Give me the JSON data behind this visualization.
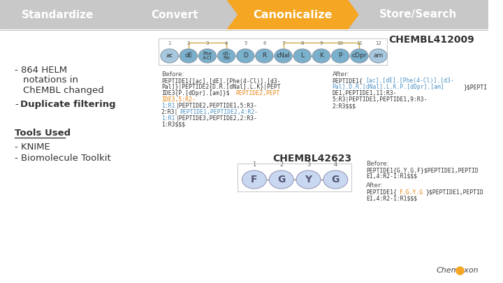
{
  "bg_color": "#e8e8e8",
  "white_bg": "#ffffff",
  "header_bg": "#c8c8c8",
  "arrow_color": "#f5a623",
  "arrow_text_color": "#ffffff",
  "header_items": [
    "Standardize",
    "Convert",
    "Canonicalize",
    "Store/Search"
  ],
  "chembl_title1": "CHEMBL412009",
  "chembl_title2": "CHEMBL42623",
  "orange_text": "#e8820c",
  "blue_text": "#4a90c4",
  "dark_text": "#333333",
  "gray_text": "#666666",
  "node_color_blue": "#7ab0cc",
  "node_color_light": "#a8c8e0",
  "node_color_light2": "#c8d8f0",
  "node_border": "#8899aa",
  "connection_line": "#ccaa44",
  "tools_label": "Tools Used",
  "bullet1_line1": "864 HELM",
  "bullet1_line2": "notations in",
  "bullet1_line3": "ChEMBL changed",
  "bullet2": "Duplicate filtering",
  "tool1": "KNIME",
  "tool2": "Biomolecule Toolkit"
}
